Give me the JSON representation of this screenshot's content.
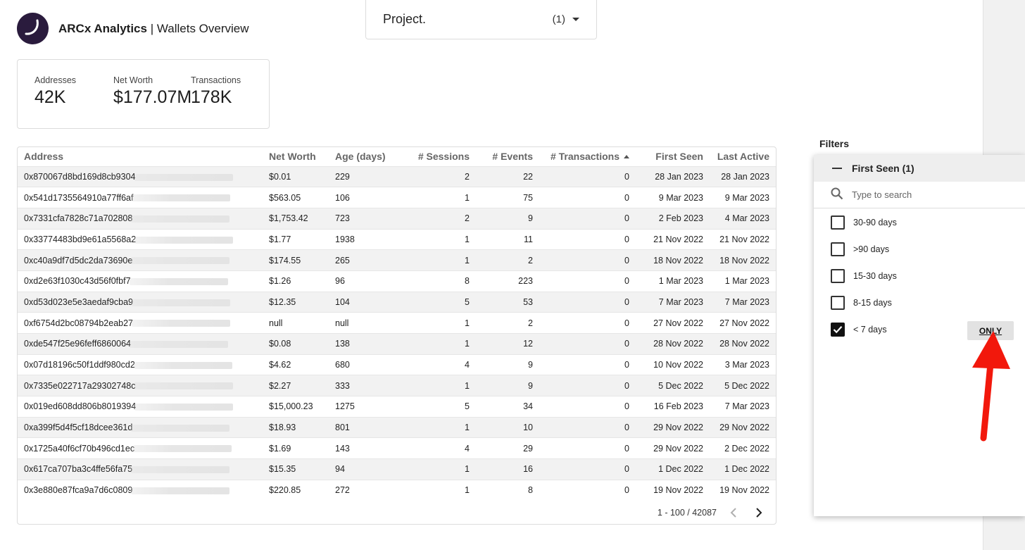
{
  "brand": {
    "name": "ARCx Analytics",
    "separator": " | ",
    "page": "Wallets Overview"
  },
  "project": {
    "label": "Project.",
    "count": "(1)"
  },
  "kpis": [
    {
      "label": "Addresses",
      "value": "42K"
    },
    {
      "label": "Net Worth",
      "value": "$177.07M"
    },
    {
      "label": "Transactions",
      "value": "178K"
    }
  ],
  "table": {
    "columns": [
      "Address",
      "Net Worth",
      "Age (days)",
      "# Sessions",
      "# Events",
      "# Transactions",
      "First Seen",
      "Last Active"
    ],
    "rows": [
      [
        "0x870067d8bd169d8cb9304",
        "$0.01",
        "229",
        "2",
        "22",
        "0",
        "28 Jan 2023",
        "28 Jan 2023"
      ],
      [
        "0x541d1735564910a77ff6af",
        "$563.05",
        "106",
        "1",
        "75",
        "0",
        "9 Mar 2023",
        "9 Mar 2023"
      ],
      [
        "0x7331cfa7828c71a702808",
        "$1,753.42",
        "723",
        "2",
        "9",
        "0",
        "2 Feb 2023",
        "4 Mar 2023"
      ],
      [
        "0x33774483bd9e61a5568a2",
        "$1.77",
        "1938",
        "1",
        "11",
        "0",
        "21 Nov 2022",
        "21 Nov 2022"
      ],
      [
        "0xc40a9df7d5dc2da73690e",
        "$174.55",
        "265",
        "1",
        "2",
        "0",
        "18 Nov 2022",
        "18 Nov 2022"
      ],
      [
        "0xd2e63f1030c43d56f0fbf7",
        "$1.26",
        "96",
        "8",
        "223",
        "0",
        "1 Mar 2023",
        "1 Mar 2023"
      ],
      [
        "0xd53d023e5e3aedaf9cba9",
        "$12.35",
        "104",
        "5",
        "53",
        "0",
        "7 Mar 2023",
        "7 Mar 2023"
      ],
      [
        "0xf6754d2bc08794b2eab27",
        "null",
        "null",
        "1",
        "2",
        "0",
        "27 Nov 2022",
        "27 Nov 2022"
      ],
      [
        "0xde547f25e96feff6860064",
        "$0.08",
        "138",
        "1",
        "12",
        "0",
        "28 Nov 2022",
        "28 Nov 2022"
      ],
      [
        "0x07d18196c50f1ddf980cd2",
        "$4.62",
        "680",
        "4",
        "9",
        "0",
        "10 Nov 2022",
        "3 Mar 2023"
      ],
      [
        "0x7335e022717a29302748c",
        "$2.27",
        "333",
        "1",
        "9",
        "0",
        "5 Dec 2022",
        "5 Dec 2022"
      ],
      [
        "0x019ed608dd806b8019394",
        "$15,000.23",
        "1275",
        "5",
        "34",
        "0",
        "16 Feb 2023",
        "7 Mar 2023"
      ],
      [
        "0xa399f5d4f5cf18dcee361d",
        "$18.93",
        "801",
        "1",
        "10",
        "0",
        "29 Nov 2022",
        "29 Nov 2022"
      ],
      [
        "0x1725a40f6cf70b496cd1ec",
        "$1.69",
        "143",
        "4",
        "29",
        "0",
        "29 Nov 2022",
        "2 Dec 2022"
      ],
      [
        "0x617ca707ba3c4ffe56fa75",
        "$15.35",
        "94",
        "1",
        "16",
        "0",
        "1 Dec 2022",
        "1 Dec 2022"
      ],
      [
        "0x3e880e87fca9a7d6c0809",
        "$220.85",
        "272",
        "1",
        "8",
        "0",
        "19 Nov 2022",
        "19 Nov 2022"
      ]
    ],
    "pagination": "1 - 100 / 42087"
  },
  "filters": {
    "title": "Filters",
    "group": "First Seen (1)",
    "search_placeholder": "Type to search",
    "options": [
      {
        "label": "30-90 days",
        "checked": false
      },
      {
        "label": ">90 days",
        "checked": false
      },
      {
        "label": "15-30 days",
        "checked": false
      },
      {
        "label": "8-15 days",
        "checked": false
      },
      {
        "label": "< 7 days",
        "checked": true
      }
    ],
    "only_label": "ONLY"
  },
  "colors": {
    "logo_bg": "#2a1b3d",
    "annotation_arrow": "#f2180c"
  }
}
